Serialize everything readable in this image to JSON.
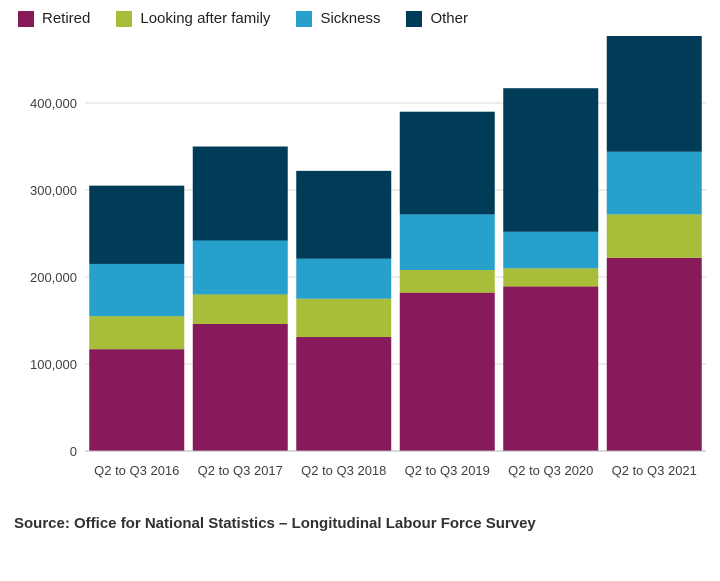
{
  "chart_data": {
    "type": "bar",
    "stacked": true,
    "title": "",
    "xlabel": "",
    "ylabel": "",
    "categories": [
      "Q2 to Q3 2016",
      "Q2 to Q3 2017",
      "Q2 to Q3 2018",
      "Q2 to Q3 2019",
      "Q2 to Q3 2020",
      "Q2 to Q3 2021"
    ],
    "series": [
      {
        "name": "Retired",
        "color": "#871A5B",
        "values": [
          117000,
          146000,
          131000,
          182000,
          189000,
          222000
        ]
      },
      {
        "name": "Looking after family",
        "color": "#A8BD3A",
        "values": [
          38000,
          34000,
          44000,
          26000,
          21000,
          50000
        ]
      },
      {
        "name": "Sickness",
        "color": "#27A0CC",
        "values": [
          60000,
          62000,
          46000,
          64000,
          42000,
          72000
        ]
      },
      {
        "name": "Other",
        "color": "#003C57",
        "values": [
          90000,
          108000,
          101000,
          118000,
          165000,
          133000
        ]
      }
    ],
    "totals": [
      305000,
      350000,
      322000,
      390000,
      417000,
      477000
    ],
    "yticks": [
      0,
      100000,
      200000,
      300000,
      400000
    ],
    "ytick_labels": [
      "0",
      "100,000",
      "200,000",
      "300,000",
      "400,000"
    ],
    "ylim": [
      0,
      480000
    ],
    "legend_position": "top",
    "grid": "horizontal",
    "grid_color": "#d9d9d9",
    "axis_line_color": "#b3b3b3",
    "tick_label_color": "#414042"
  },
  "source": {
    "text": "Source: Office for National Statistics – Longitudinal Labour Force Survey"
  }
}
